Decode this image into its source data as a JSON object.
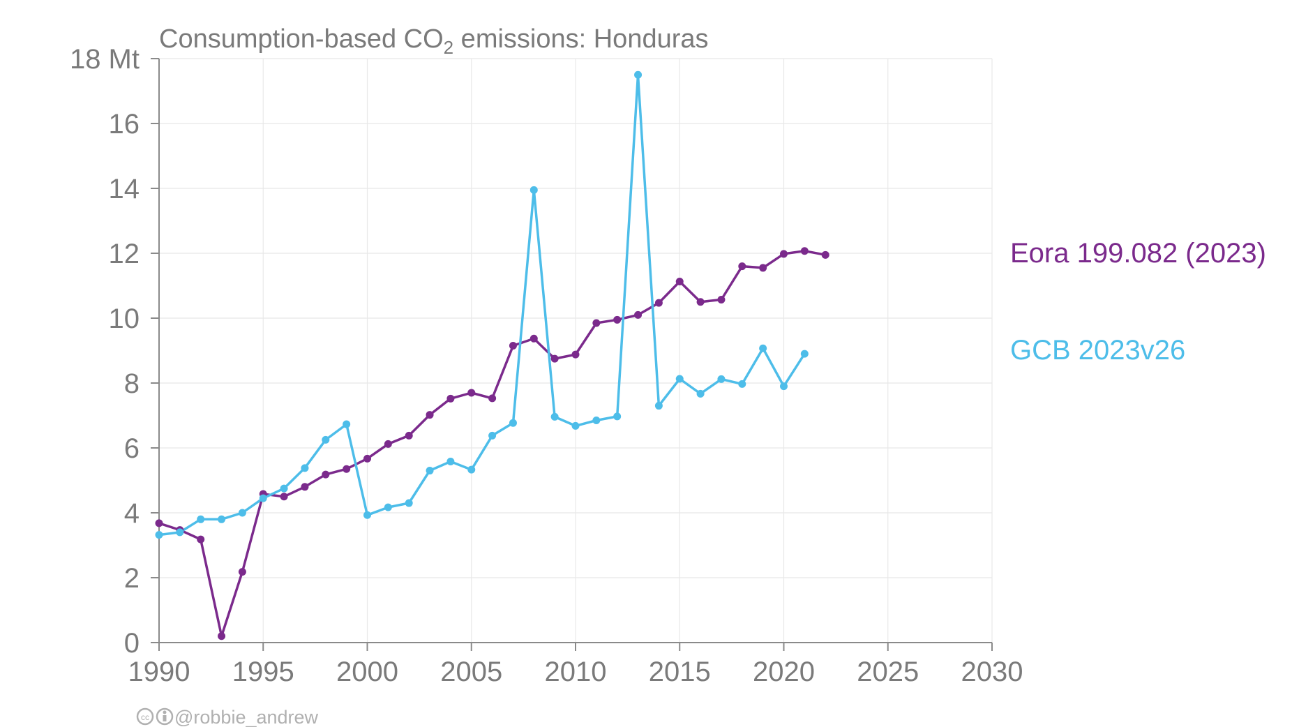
{
  "chart_data": {
    "type": "line",
    "title": "Consumption-based CO",
    "title_sub": "2",
    "title_rest": " emissions: Honduras",
    "y_unit": "Mt",
    "ylim": [
      0,
      18
    ],
    "xlim": [
      1990,
      2030
    ],
    "y_ticks": [
      0,
      2,
      4,
      6,
      8,
      10,
      12,
      14,
      16,
      18
    ],
    "y_tick_labels": [
      "0",
      "2",
      "4",
      "6",
      "8",
      "10",
      "12",
      "14",
      "16",
      "18 Mt"
    ],
    "x_ticks": [
      1990,
      1995,
      2000,
      2005,
      2010,
      2015,
      2020,
      2025,
      2030
    ],
    "x_tick_labels": [
      "1990",
      "1995",
      "2000",
      "2005",
      "2010",
      "2015",
      "2020",
      "2025",
      "2030"
    ],
    "grid": true,
    "legend": "right-inline",
    "series": [
      {
        "name": "Eora 199.082 (2023)",
        "color": "#7b2a8c",
        "x": [
          1990,
          1991,
          1992,
          1993,
          1994,
          1995,
          1996,
          1997,
          1998,
          1999,
          2000,
          2001,
          2002,
          2003,
          2004,
          2005,
          2006,
          2007,
          2008,
          2009,
          2010,
          2011,
          2012,
          2013,
          2014,
          2015,
          2016,
          2017,
          2018,
          2019,
          2020,
          2021,
          2022
        ],
        "values": [
          3.68,
          3.47,
          3.18,
          0.2,
          2.18,
          4.58,
          4.5,
          4.8,
          5.18,
          5.35,
          5.67,
          6.12,
          6.38,
          7.02,
          7.52,
          7.7,
          7.53,
          9.15,
          9.37,
          8.75,
          8.88,
          9.85,
          9.95,
          10.1,
          10.47,
          11.13,
          10.5,
          10.57,
          11.6,
          11.55,
          11.98,
          12.07,
          11.95
        ]
      },
      {
        "name": "GCB 2023v26",
        "color": "#4dbde9",
        "x": [
          1990,
          1991,
          1992,
          1993,
          1994,
          1995,
          1996,
          1997,
          1998,
          1999,
          2000,
          2001,
          2002,
          2003,
          2004,
          2005,
          2006,
          2007,
          2008,
          2009,
          2010,
          2011,
          2012,
          2013,
          2014,
          2015,
          2016,
          2017,
          2018,
          2019,
          2020,
          2021
        ],
        "values": [
          3.32,
          3.4,
          3.8,
          3.8,
          4.0,
          4.45,
          4.75,
          5.38,
          6.25,
          6.73,
          3.93,
          4.17,
          4.3,
          5.3,
          5.58,
          5.33,
          6.38,
          6.77,
          13.95,
          6.96,
          6.68,
          6.85,
          6.97,
          17.5,
          7.3,
          8.13,
          7.67,
          8.12,
          7.97,
          9.07,
          7.9,
          8.9
        ]
      }
    ]
  },
  "credit": {
    "icons": [
      "cc-icon",
      "attribution-icon"
    ],
    "handle": "@robbie_andrew"
  }
}
